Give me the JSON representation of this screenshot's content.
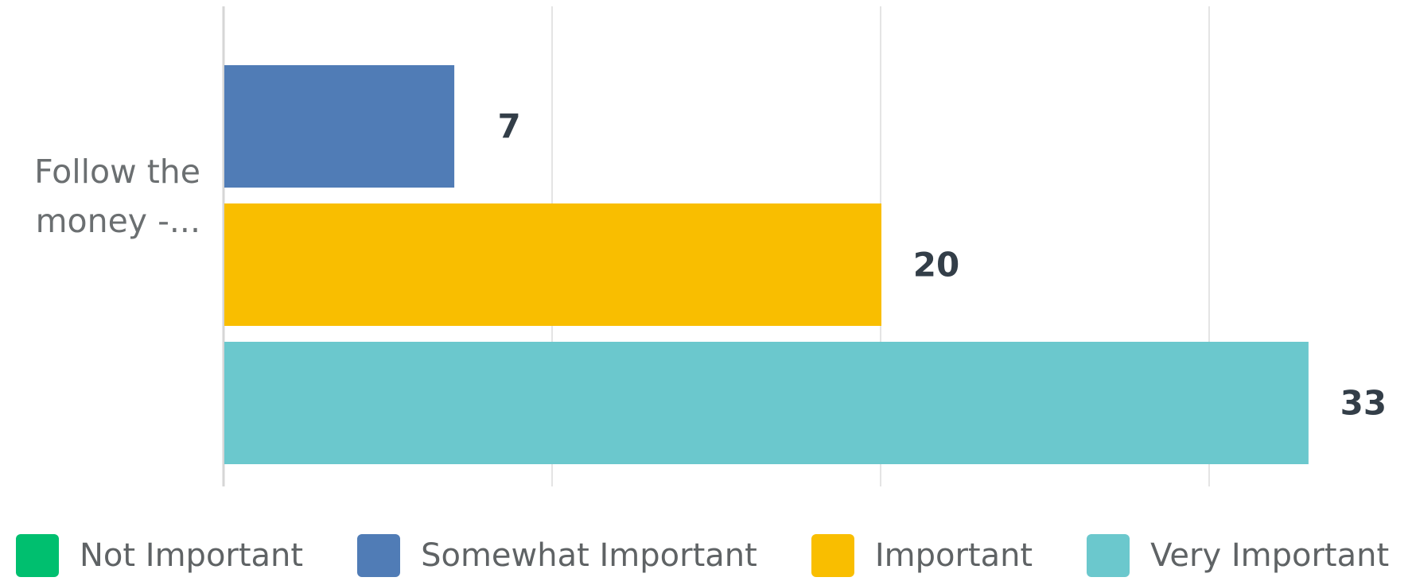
{
  "chart_data": {
    "type": "bar",
    "orientation": "horizontal",
    "categories": [
      "Follow the money -..."
    ],
    "category_label_lines": [
      "Follow the",
      "money -..."
    ],
    "series": [
      {
        "name": "Not Important",
        "values": [
          0
        ],
        "color": "#00bf6f"
      },
      {
        "name": "Somewhat Important",
        "values": [
          7
        ],
        "color": "#507cb6"
      },
      {
        "name": "Important",
        "values": [
          20
        ],
        "color": "#f9be00"
      },
      {
        "name": "Very Important",
        "values": [
          33
        ],
        "color": "#6bc8cd"
      }
    ],
    "xlim": [
      0,
      33
    ],
    "grid": true,
    "legend_position": "bottom"
  }
}
